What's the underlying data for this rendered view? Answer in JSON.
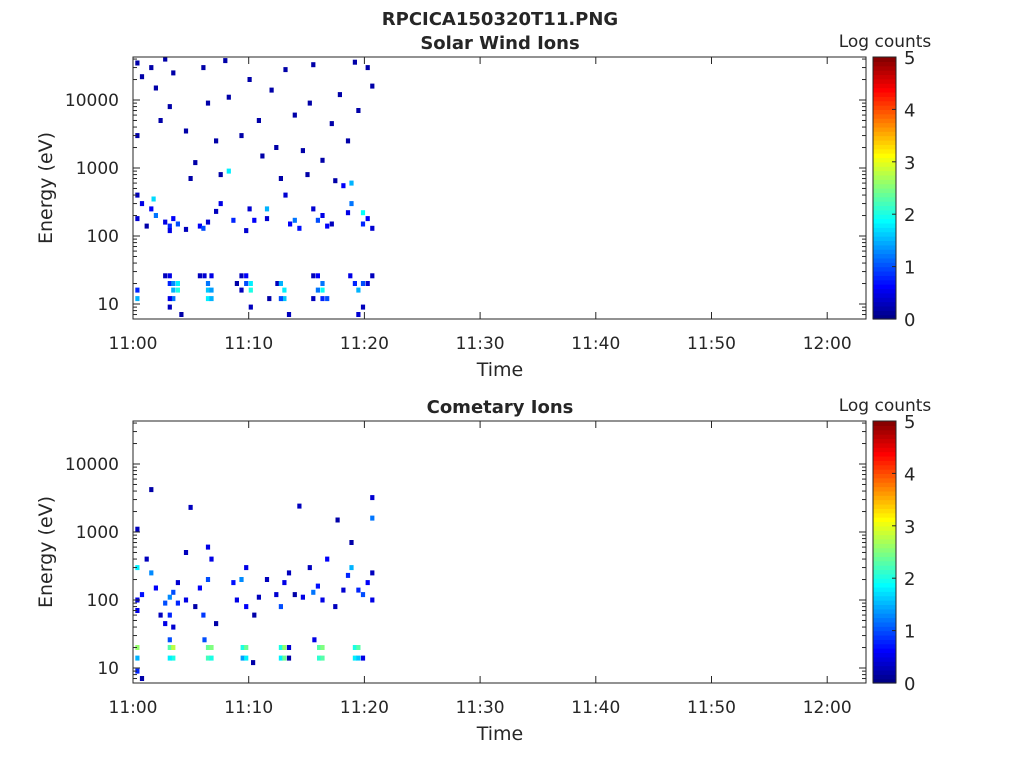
{
  "figure_title": "RPCICA150320T11.PNG",
  "chart_data": [
    {
      "type": "heatmap",
      "title": "Solar Wind Ions",
      "xlabel": "Time",
      "ylabel": "Energy (eV)",
      "x_ticks": [
        "11:00",
        "11:10",
        "11:20",
        "11:30",
        "11:40",
        "11:50",
        "12:00"
      ],
      "x_range_minutes_after_1100": [
        0,
        63.4
      ],
      "y_scale": "log",
      "y_ticks": [
        "10",
        "100",
        "1000",
        "10000"
      ],
      "y_tick_values": [
        10,
        100,
        1000,
        10000
      ],
      "ylim": [
        6,
        41700
      ],
      "colorbar": {
        "label": "Log counts",
        "ticks": [
          "0",
          "1",
          "2",
          "3",
          "4",
          "5"
        ],
        "range": [
          0,
          5
        ],
        "colormap": "jet"
      },
      "cell_format": [
        "minutes after 11:00",
        "energy eV",
        "log counts"
      ],
      "cells": [
        [
          0.2,
          12,
          1.5
        ],
        [
          0.2,
          16,
          0.8
        ],
        [
          2.6,
          26,
          0.3
        ],
        [
          3.0,
          26,
          0.5
        ],
        [
          3.0,
          20,
          0.8
        ],
        [
          3.3,
          20,
          1.3
        ],
        [
          3.3,
          16,
          1.5
        ],
        [
          3.3,
          12,
          1.2
        ],
        [
          3.7,
          20,
          1.8
        ],
        [
          3.7,
          16,
          2.0
        ],
        [
          3.0,
          12,
          0.5
        ],
        [
          3.0,
          9,
          0.3
        ],
        [
          4.0,
          7,
          0.2
        ],
        [
          5.6,
          26,
          0.3
        ],
        [
          6.0,
          26,
          0.4
        ],
        [
          6.3,
          20,
          1.2
        ],
        [
          6.3,
          16,
          1.6
        ],
        [
          6.3,
          12,
          1.8
        ],
        [
          6.6,
          16,
          1.4
        ],
        [
          6.6,
          12,
          1.5
        ],
        [
          6.6,
          26,
          0.5
        ],
        [
          8.8,
          20,
          0.2
        ],
        [
          9.2,
          26,
          0.3
        ],
        [
          9.6,
          26,
          0.6
        ],
        [
          9.6,
          20,
          1.0
        ],
        [
          10.0,
          20,
          1.8
        ],
        [
          10.0,
          16,
          2.0
        ],
        [
          9.2,
          16,
          0.3
        ],
        [
          10.0,
          9,
          0.3
        ],
        [
          12.3,
          20,
          0.3
        ],
        [
          12.6,
          20,
          1.5
        ],
        [
          12.9,
          16,
          1.8
        ],
        [
          12.9,
          12,
          1.6
        ],
        [
          12.6,
          12,
          1.0
        ],
        [
          13.3,
          7,
          0.3
        ],
        [
          11.6,
          12,
          0.2
        ],
        [
          15.4,
          26,
          0.3
        ],
        [
          15.8,
          26,
          0.6
        ],
        [
          16.2,
          20,
          1.2
        ],
        [
          16.2,
          16,
          1.9
        ],
        [
          15.8,
          16,
          1.2
        ],
        [
          16.6,
          12,
          1.0
        ],
        [
          16.2,
          12,
          0.8
        ],
        [
          15.4,
          12,
          0.3
        ],
        [
          18.6,
          26,
          0.5
        ],
        [
          19.0,
          20,
          0.8
        ],
        [
          19.3,
          16,
          1.5
        ],
        [
          19.7,
          20,
          1.0
        ],
        [
          19.7,
          9,
          0.3
        ],
        [
          20.1,
          20,
          0.4
        ],
        [
          20.5,
          26,
          0.3
        ],
        [
          19.3,
          7,
          0.4
        ],
        [
          0.2,
          400,
          0.3
        ],
        [
          0.6,
          300,
          0.5
        ],
        [
          0.2,
          180,
          0.4
        ],
        [
          1.0,
          140,
          0.2
        ],
        [
          1.4,
          250,
          0.6
        ],
        [
          1.6,
          350,
          1.7
        ],
        [
          1.8,
          200,
          1.2
        ],
        [
          2.6,
          160,
          0.5
        ],
        [
          3.0,
          140,
          0.8
        ],
        [
          3.3,
          180,
          0.6
        ],
        [
          3.7,
          150,
          1.0
        ],
        [
          3.0,
          120,
          0.5
        ],
        [
          4.4,
          125,
          0.3
        ],
        [
          5.6,
          140,
          0.6
        ],
        [
          5.9,
          130,
          1.0
        ],
        [
          6.3,
          160,
          0.4
        ],
        [
          7.0,
          230,
          0.3
        ],
        [
          7.4,
          300,
          0.5
        ],
        [
          8.1,
          900,
          1.8
        ],
        [
          8.5,
          170,
          0.8
        ],
        [
          9.6,
          120,
          0.4
        ],
        [
          9.9,
          250,
          0.4
        ],
        [
          10.3,
          170,
          0.6
        ],
        [
          11.4,
          180,
          0.4
        ],
        [
          11.4,
          250,
          1.5
        ],
        [
          13.0,
          400,
          0.4
        ],
        [
          13.4,
          150,
          0.6
        ],
        [
          13.8,
          170,
          1.2
        ],
        [
          14.2,
          130,
          0.7
        ],
        [
          15.4,
          250,
          0.4
        ],
        [
          15.8,
          170,
          1.0
        ],
        [
          16.2,
          200,
          0.5
        ],
        [
          16.6,
          140,
          0.6
        ],
        [
          17.0,
          150,
          0.3
        ],
        [
          18.0,
          550,
          0.6
        ],
        [
          18.4,
          220,
          0.5
        ],
        [
          18.7,
          300,
          1.2
        ],
        [
          18.7,
          600,
          1.5
        ],
        [
          19.7,
          220,
          1.9
        ],
        [
          19.7,
          150,
          0.8
        ],
        [
          20.1,
          180,
          0.6
        ],
        [
          20.5,
          130,
          0.4
        ],
        [
          0.2,
          35000,
          0.2
        ],
        [
          0.6,
          22000,
          0.2
        ],
        [
          1.4,
          30000,
          0.2
        ],
        [
          1.8,
          15000,
          0.2
        ],
        [
          2.6,
          40000,
          0.2
        ],
        [
          3.0,
          8000,
          0.2
        ],
        [
          3.3,
          25000,
          0.2
        ],
        [
          4.4,
          3500,
          0.2
        ],
        [
          5.2,
          1200,
          0.2
        ],
        [
          5.9,
          30000,
          0.2
        ],
        [
          6.3,
          9000,
          0.2
        ],
        [
          7.0,
          2500,
          0.2
        ],
        [
          7.8,
          38000,
          0.2
        ],
        [
          8.1,
          11000,
          0.2
        ],
        [
          9.2,
          3000,
          0.2
        ],
        [
          9.9,
          20000,
          0.2
        ],
        [
          10.7,
          5000,
          0.2
        ],
        [
          11.0,
          1500,
          0.2
        ],
        [
          11.8,
          14000,
          0.2
        ],
        [
          12.2,
          2000,
          0.2
        ],
        [
          13.0,
          28000,
          0.2
        ],
        [
          13.8,
          6000,
          0.2
        ],
        [
          14.5,
          1800,
          0.2
        ],
        [
          15.1,
          9000,
          0.2
        ],
        [
          15.4,
          33000,
          0.2
        ],
        [
          16.2,
          1300,
          0.2
        ],
        [
          17.0,
          4500,
          0.2
        ],
        [
          17.7,
          12000,
          0.2
        ],
        [
          18.4,
          2500,
          0.2
        ],
        [
          19.0,
          36000,
          0.2
        ],
        [
          19.3,
          7000,
          0.2
        ],
        [
          20.1,
          30000,
          0.2
        ],
        [
          20.5,
          16000,
          0.2
        ],
        [
          0.2,
          3000,
          0.2
        ],
        [
          2.2,
          5000,
          0.2
        ],
        [
          4.8,
          700,
          0.2
        ],
        [
          7.4,
          800,
          0.2
        ],
        [
          12.6,
          700,
          0.2
        ],
        [
          17.3,
          650,
          0.2
        ],
        [
          14.9,
          800,
          0.2
        ]
      ]
    },
    {
      "type": "heatmap",
      "title": "Cometary Ions",
      "xlabel": "Time",
      "ylabel": "Energy (eV)",
      "x_ticks": [
        "11:00",
        "11:10",
        "11:20",
        "11:30",
        "11:40",
        "11:50",
        "12:00"
      ],
      "x_range_minutes_after_1100": [
        0,
        63.4
      ],
      "y_scale": "log",
      "y_ticks": [
        "10",
        "100",
        "1000",
        "10000"
      ],
      "y_tick_values": [
        10,
        100,
        1000,
        10000
      ],
      "ylim": [
        6,
        41700
      ],
      "colorbar": {
        "label": "Log counts",
        "ticks": [
          "0",
          "1",
          "2",
          "3",
          "4",
          "5"
        ],
        "range": [
          0,
          5
        ],
        "colormap": "jet"
      },
      "cell_format": [
        "minutes after 11:00",
        "energy eV",
        "log counts"
      ],
      "cells": [
        [
          3.0,
          20,
          2.3
        ],
        [
          3.3,
          20,
          2.8
        ],
        [
          3.3,
          14,
          2.0
        ],
        [
          3.0,
          14,
          1.8
        ],
        [
          3.0,
          26,
          1.0
        ],
        [
          6.3,
          20,
          2.4
        ],
        [
          6.6,
          20,
          2.5
        ],
        [
          6.3,
          14,
          2.2
        ],
        [
          6.6,
          14,
          2.0
        ],
        [
          6.0,
          26,
          1.0
        ],
        [
          9.3,
          20,
          2.0
        ],
        [
          9.6,
          20,
          2.4
        ],
        [
          9.3,
          14,
          1.4
        ],
        [
          9.6,
          14,
          1.8
        ],
        [
          10.2,
          12,
          0.2
        ],
        [
          12.6,
          20,
          2.0
        ],
        [
          12.9,
          20,
          2.6
        ],
        [
          12.6,
          14,
          1.8
        ],
        [
          12.9,
          14,
          2.4
        ],
        [
          13.3,
          14,
          0.2
        ],
        [
          13.3,
          20,
          0.4
        ],
        [
          15.9,
          20,
          2.3
        ],
        [
          16.2,
          20,
          2.5
        ],
        [
          15.9,
          14,
          2.1
        ],
        [
          16.2,
          14,
          2.3
        ],
        [
          15.5,
          26,
          0.5
        ],
        [
          19.0,
          20,
          2.0
        ],
        [
          19.3,
          20,
          2.3
        ],
        [
          19.0,
          14,
          1.8
        ],
        [
          19.3,
          14,
          1.6
        ],
        [
          19.7,
          14,
          0.5
        ],
        [
          0.2,
          20,
          2.6
        ],
        [
          0.2,
          14,
          1.5
        ],
        [
          0.2,
          9,
          0.8
        ],
        [
          0.6,
          7,
          0.2
        ],
        [
          0.2,
          300,
          1.8
        ],
        [
          0.2,
          100,
          0.5
        ],
        [
          0.2,
          70,
          0.5
        ],
        [
          0.6,
          120,
          0.7
        ],
        [
          1.0,
          400,
          0.3
        ],
        [
          1.4,
          250,
          1.3
        ],
        [
          1.8,
          150,
          0.6
        ],
        [
          2.2,
          60,
          0.3
        ],
        [
          2.6,
          90,
          1.0
        ],
        [
          2.6,
          45,
          0.5
        ],
        [
          3.0,
          110,
          1.3
        ],
        [
          3.0,
          60,
          0.8
        ],
        [
          3.3,
          130,
          1.0
        ],
        [
          3.3,
          40,
          0.4
        ],
        [
          3.7,
          90,
          0.8
        ],
        [
          3.7,
          180,
          0.4
        ],
        [
          4.4,
          500,
          0.3
        ],
        [
          4.4,
          100,
          0.5
        ],
        [
          5.2,
          80,
          0.2
        ],
        [
          5.6,
          150,
          0.6
        ],
        [
          5.9,
          60,
          0.9
        ],
        [
          6.3,
          200,
          1.0
        ],
        [
          6.3,
          600,
          0.5
        ],
        [
          6.6,
          400,
          0.5
        ],
        [
          7.0,
          45,
          0.2
        ],
        [
          8.5,
          180,
          0.7
        ],
        [
          8.8,
          100,
          0.5
        ],
        [
          9.2,
          200,
          1.3
        ],
        [
          9.6,
          80,
          0.6
        ],
        [
          9.6,
          300,
          0.5
        ],
        [
          10.3,
          60,
          0.2
        ],
        [
          10.7,
          110,
          0.3
        ],
        [
          11.4,
          200,
          0.3
        ],
        [
          12.2,
          120,
          0.4
        ],
        [
          12.6,
          80,
          1.0
        ],
        [
          12.9,
          180,
          0.5
        ],
        [
          13.3,
          250,
          0.3
        ],
        [
          13.8,
          120,
          0.2
        ],
        [
          14.5,
          110,
          0.5
        ],
        [
          15.1,
          300,
          0.3
        ],
        [
          15.4,
          130,
          1.2
        ],
        [
          15.8,
          160,
          0.7
        ],
        [
          16.2,
          100,
          0.5
        ],
        [
          16.6,
          400,
          0.6
        ],
        [
          17.3,
          80,
          0.3
        ],
        [
          18.0,
          140,
          0.4
        ],
        [
          18.4,
          230,
          0.8
        ],
        [
          18.7,
          300,
          1.5
        ],
        [
          18.7,
          700,
          0.2
        ],
        [
          19.3,
          140,
          0.8
        ],
        [
          19.7,
          120,
          1.0
        ],
        [
          20.1,
          180,
          0.6
        ],
        [
          20.5,
          100,
          0.5
        ],
        [
          20.5,
          250,
          0.3
        ],
        [
          1.4,
          4200,
          0.2
        ],
        [
          4.8,
          2300,
          0.3
        ],
        [
          14.2,
          2400,
          0.3
        ],
        [
          17.5,
          1500,
          0.2
        ],
        [
          20.5,
          3200,
          0.4
        ],
        [
          20.5,
          1600,
          1.2
        ],
        [
          0.2,
          1100,
          0.3
        ]
      ]
    }
  ]
}
